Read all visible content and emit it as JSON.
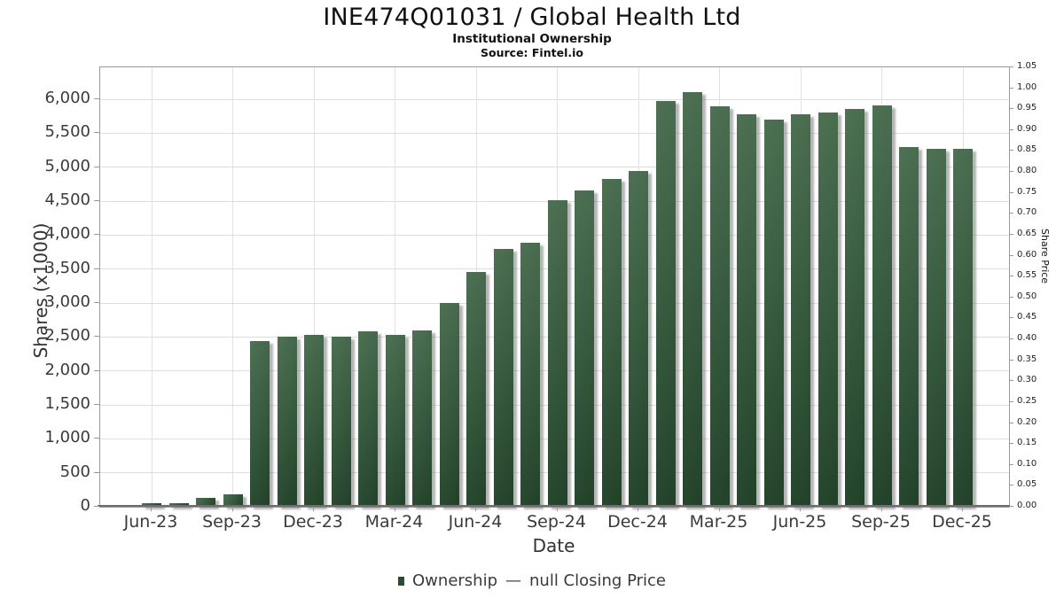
{
  "header": {
    "title": "INE474Q01031 / Global Health Ltd",
    "subtitle": "Institutional Ownership",
    "source": "Source: Fintel.io"
  },
  "chart_data": {
    "type": "bar",
    "title": "INE474Q01031 / Global Health Ltd",
    "subtitle": "Institutional Ownership",
    "source": "Source: Fintel.io",
    "xlabel": "Date",
    "ylabel_left": "Shares (x1000)",
    "ylabel_right": "Share Price",
    "categories": [
      "Jun-23",
      "Jul-23",
      "Aug-23",
      "Sep-23",
      "Oct-23",
      "Nov-23",
      "Dec-23",
      "Jan-24",
      "Feb-24",
      "Mar-24",
      "Apr-24",
      "May-24",
      "Jun-24",
      "Jul-24",
      "Aug-24",
      "Sep-24",
      "Oct-24",
      "Nov-24",
      "Dec-24",
      "Jan-25",
      "Feb-25",
      "Mar-25",
      "Apr-25",
      "May-25",
      "Jun-25",
      "Jul-25",
      "Aug-25",
      "Sep-25",
      "Oct-25",
      "Nov-25",
      "Dec-25"
    ],
    "series": [
      {
        "name": "Ownership",
        "axis": "left",
        "values": [
          50,
          50,
          130,
          185,
          2440,
          2500,
          2530,
          2510,
          2580,
          2530,
          2600,
          3000,
          3460,
          3800,
          3890,
          4510,
          4660,
          4820,
          4950,
          5970,
          6110,
          5890,
          5780,
          5700,
          5780,
          5800,
          5860,
          5910,
          5290,
          5270,
          5270
        ]
      },
      {
        "name": "null Closing Price",
        "axis": "right",
        "values": null
      }
    ],
    "xticks": [
      "Jun-23",
      "Sep-23",
      "Dec-23",
      "Mar-24",
      "Jun-24",
      "Sep-24",
      "Dec-24",
      "Mar-25",
      "Jun-25",
      "Sep-25",
      "Dec-25"
    ],
    "yticks_left": [
      "0",
      "500",
      "1,000",
      "1,500",
      "2,000",
      "2,500",
      "3,000",
      "3,500",
      "4,000",
      "4,500",
      "5,000",
      "5,500",
      "6,000"
    ],
    "yticks_right": [
      "0.00",
      "0.05",
      "0.10",
      "0.15",
      "0.20",
      "0.25",
      "0.30",
      "0.35",
      "0.40",
      "0.45",
      "0.50",
      "0.55",
      "0.60",
      "0.65",
      "0.70",
      "0.75",
      "0.80",
      "0.85",
      "0.90",
      "0.95",
      "1.00",
      "1.05"
    ],
    "ylim_left": [
      0,
      6470
    ],
    "ylim_right": [
      0,
      1.05
    ],
    "grid": true,
    "legend_position": "bottom",
    "bar_color": "#2d5033",
    "bar_gradient": [
      "#4e7154",
      "#214228"
    ],
    "grid_color": "#dedede"
  },
  "legend": {
    "ownership_label": "Ownership",
    "separator": "—",
    "price_label": "null Closing Price",
    "swatch_color": "#2a4d31"
  }
}
